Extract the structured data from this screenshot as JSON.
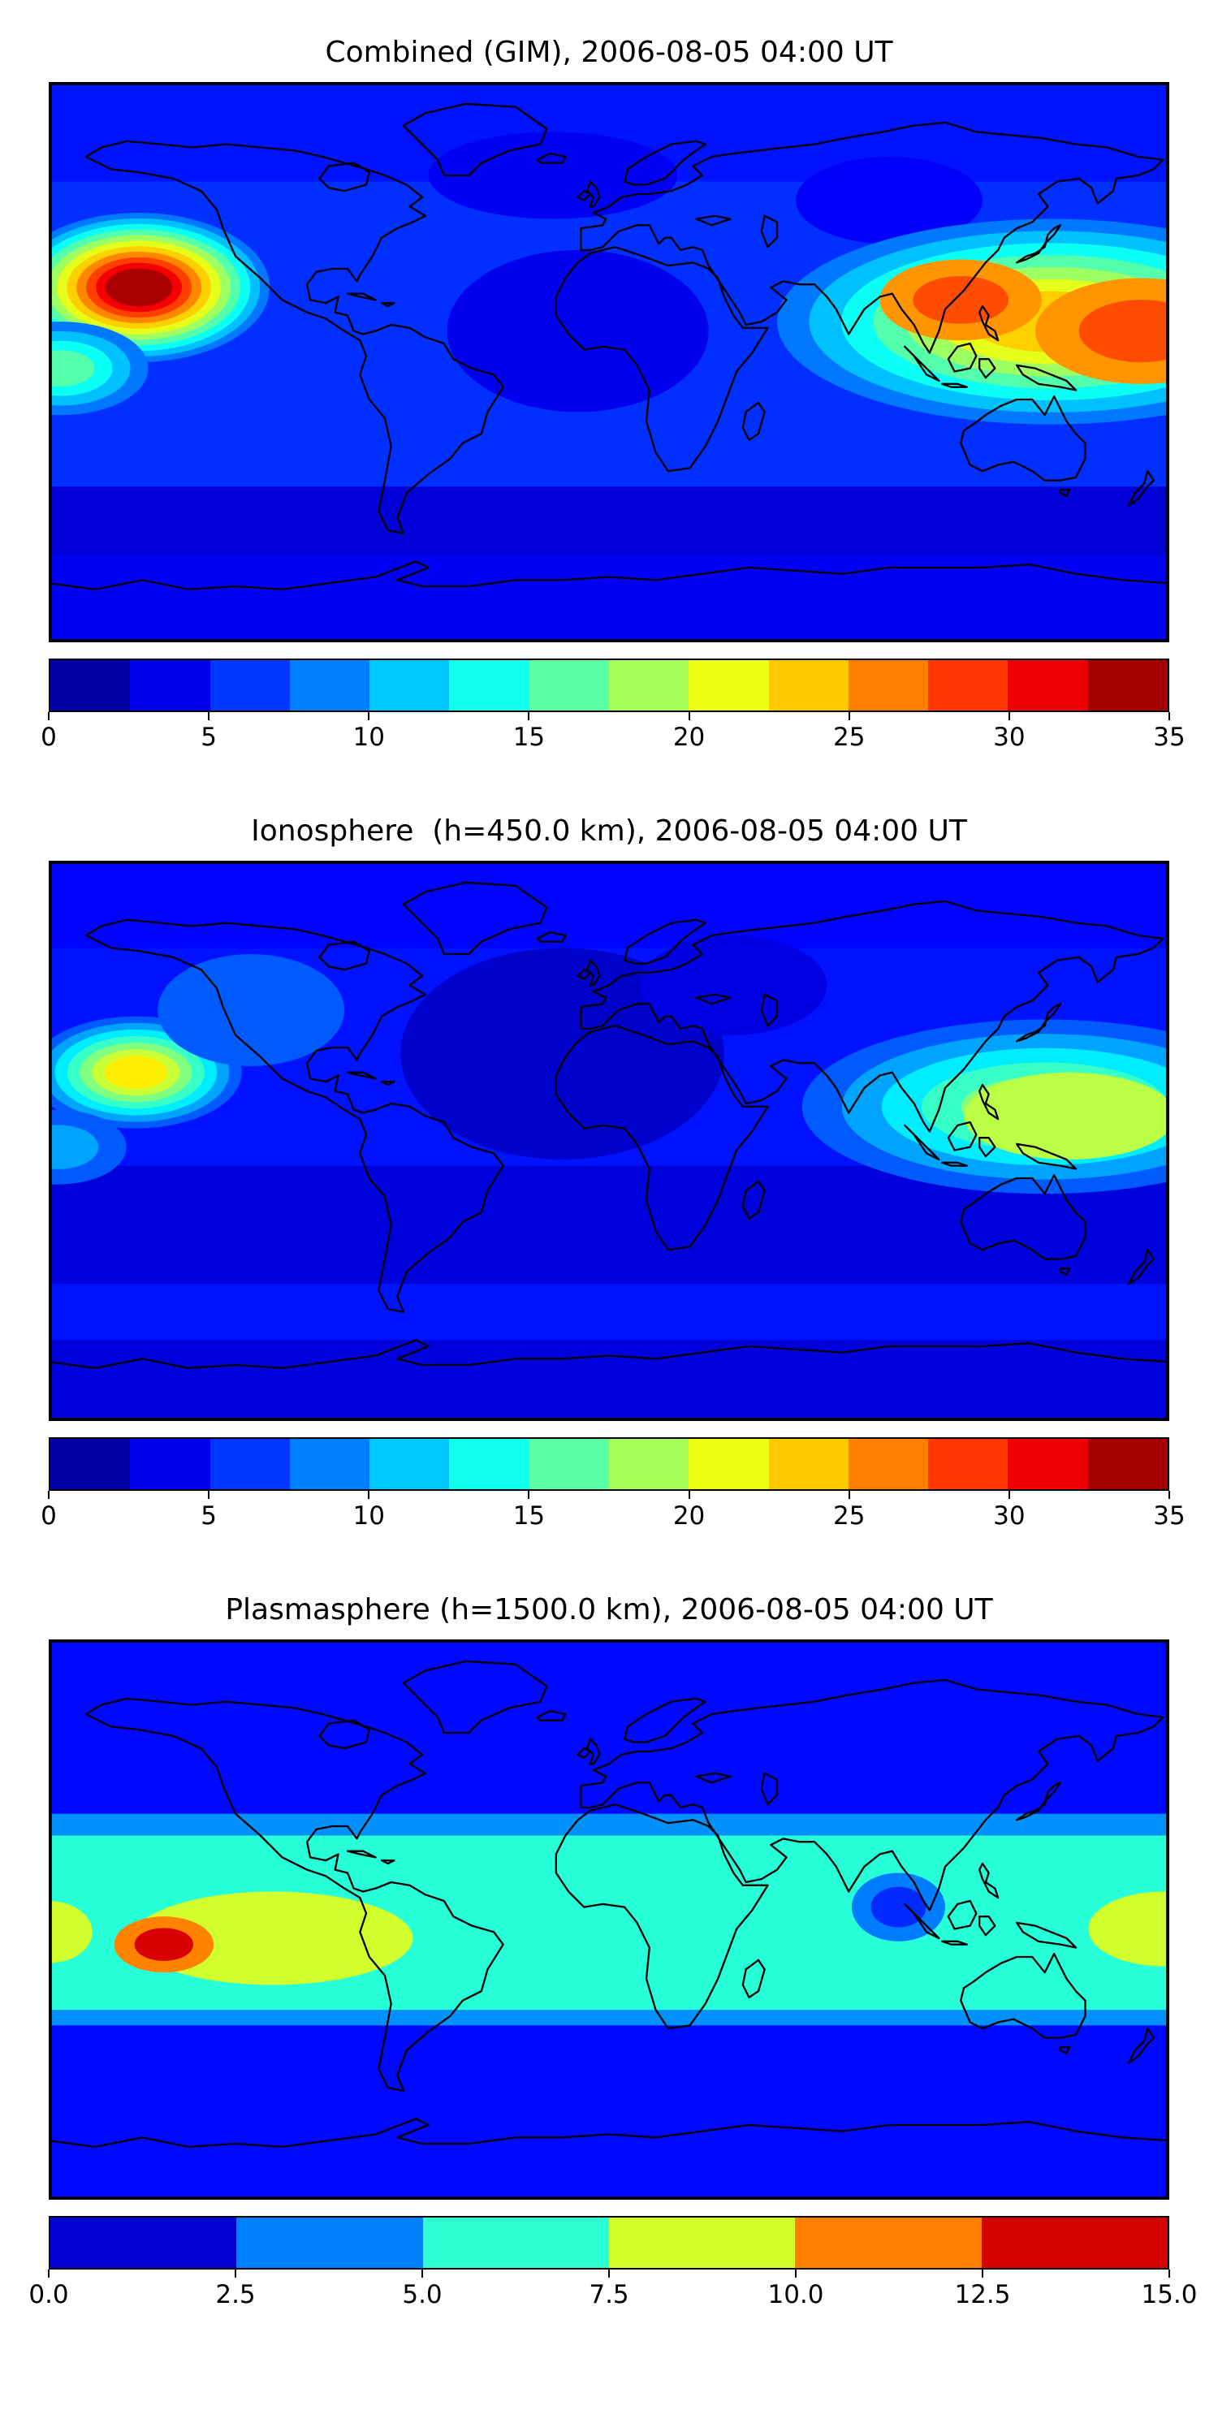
{
  "figure": {
    "background_color": "#ffffff",
    "coastline_color": "#000000",
    "frame_color": "#000000",
    "panels_count": 3
  },
  "chart_data": [
    {
      "type": "heatmap",
      "title": "Combined (GIM), 2006-08-05 04:00 UT",
      "projection": "equirectangular",
      "lon_range": [
        -180,
        180
      ],
      "lat_range": [
        -90,
        90
      ],
      "colormap": "jet",
      "vmin": 0,
      "vmax": 35,
      "contour_step": 2.5,
      "colorbar_ticks": [
        0,
        5,
        10,
        15,
        20,
        25,
        30,
        35
      ],
      "colorbar_tick_labels": [
        "0",
        "5",
        "10",
        "15",
        "20",
        "25",
        "30",
        "35"
      ],
      "legend_position": "bottom",
      "grid": false,
      "field": {
        "background": 6,
        "bands": [
          {
            "lat": [
              90,
              58
            ],
            "value": 5
          },
          {
            "lat": [
              -40,
              -62
            ],
            "value": 3
          },
          {
            "lat": [
              -62,
              -90
            ],
            "value": 4
          }
        ],
        "cold_spots": [
          {
            "lon": -18,
            "lat": 60,
            "rx": 40,
            "ry": 14,
            "value": 4
          },
          {
            "lon": -10,
            "lat": 10,
            "rx": 42,
            "ry": 26,
            "value": 3.8
          },
          {
            "lon": 90,
            "lat": 52,
            "rx": 30,
            "ry": 14,
            "value": 4.2
          }
        ],
        "hot_spots": [
          {
            "lon": 142,
            "lat": 13,
            "rx": 88,
            "ry": 33,
            "peak": 24
          },
          {
            "lon": 113,
            "lat": 20,
            "rx": 26,
            "ry": 13,
            "peak": 29,
            "base": 23
          },
          {
            "lon": 171,
            "lat": 10,
            "rx": 34,
            "ry": 17,
            "peak": 30,
            "base": 23
          },
          {
            "lon": -151,
            "lat": 24,
            "rx": 42,
            "ry": 24,
            "peak": 34
          },
          {
            "lon": -176,
            "lat": -2,
            "rx": 28,
            "ry": 15,
            "peak": 16
          }
        ]
      }
    },
    {
      "type": "heatmap",
      "title": "Ionosphere  (h=450.0 km), 2006-08-05 04:00 UT",
      "projection": "equirectangular",
      "lon_range": [
        -180,
        180
      ],
      "lat_range": [
        -90,
        90
      ],
      "colormap": "jet",
      "vmin": 0,
      "vmax": 35,
      "contour_step": 2.5,
      "colorbar_ticks": [
        0,
        5,
        10,
        15,
        20,
        25,
        30,
        35
      ],
      "colorbar_tick_labels": [
        "0",
        "5",
        "10",
        "15",
        "20",
        "25",
        "30",
        "35"
      ],
      "legend_position": "bottom",
      "grid": false,
      "field": {
        "background": 5,
        "bands": [
          {
            "lat": [
              90,
              62
            ],
            "value": 4.5
          },
          {
            "lat": [
              -8,
              -46
            ],
            "value": 3.2
          },
          {
            "lat": [
              -46,
              -64
            ],
            "value": 5
          },
          {
            "lat": [
              -64,
              -90
            ],
            "value": 3.2
          }
        ],
        "cold_spots": [
          {
            "lon": -15,
            "lat": 28,
            "rx": 52,
            "ry": 34,
            "value": 2.6
          },
          {
            "lon": 40,
            "lat": 50,
            "rx": 30,
            "ry": 16,
            "value": 3.4
          }
        ],
        "hot_spots": [
          {
            "lon": 140,
            "lat": 11,
            "rx": 78,
            "ry": 28,
            "peak": 18
          },
          {
            "lon": 148,
            "lat": 8,
            "rx": 34,
            "ry": 14,
            "peak": 21,
            "base": 17
          },
          {
            "lon": -152,
            "lat": 22,
            "rx": 34,
            "ry": 18,
            "peak": 23
          },
          {
            "lon": -115,
            "lat": 42,
            "rx": 30,
            "ry": 18,
            "peak": 8
          },
          {
            "lon": -177,
            "lat": -2,
            "rx": 22,
            "ry": 12,
            "peak": 12
          }
        ]
      }
    },
    {
      "type": "heatmap",
      "title": "Plasmasphere (h=1500.0 km), 2006-08-05 04:00 UT",
      "projection": "equirectangular",
      "lon_range": [
        -180,
        180
      ],
      "lat_range": [
        -90,
        90
      ],
      "colormap": "jet",
      "vmin": 0,
      "vmax": 15,
      "contour_step": 2.5,
      "colorbar_ticks": [
        0,
        2.5,
        5,
        7.5,
        10,
        12.5,
        15
      ],
      "colorbar_tick_labels": [
        "0.0",
        "2.5",
        "5.0",
        "7.5",
        "10.0",
        "12.5",
        "15.0"
      ],
      "legend_position": "bottom",
      "grid": false,
      "field": {
        "background": 2,
        "bands": [
          {
            "lat": [
              34,
              -34
            ],
            "value": 4
          },
          {
            "lat": [
              27,
              -29
            ],
            "value": 6.2
          }
        ],
        "cold_spots": [
          {
            "lon": 93,
            "lat": 4,
            "rx": 15,
            "ry": 11,
            "value": 2.5,
            "base": 6.2
          }
        ],
        "hot_spots": [
          {
            "lon": -108,
            "lat": -6,
            "rx": 45,
            "ry": 15,
            "peak": 9.5,
            "base": 6.2
          },
          {
            "lon": 178,
            "lat": -3,
            "rx": 24,
            "ry": 12,
            "peak": 9.5,
            "base": 6.2
          },
          {
            "lon": -180,
            "lat": -4,
            "rx": 14,
            "ry": 10,
            "peak": 9,
            "base": 6.2
          },
          {
            "lon": -143,
            "lat": -8,
            "rx": 16,
            "ry": 9,
            "peak": 14.5,
            "base": 8.7
          }
        ]
      }
    }
  ]
}
